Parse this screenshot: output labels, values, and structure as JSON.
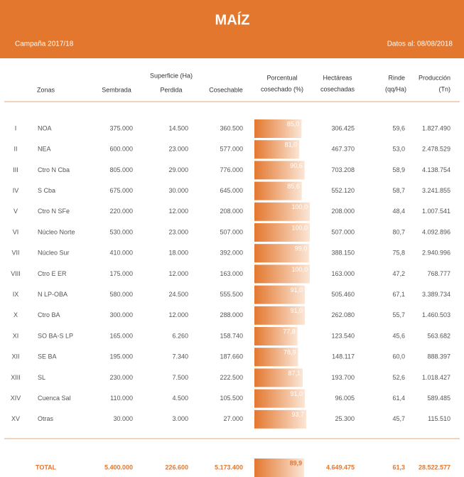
{
  "header": {
    "title": "MAÍZ",
    "campaign": "Campaña 2017/18",
    "date": "Datos al: 08/08/2018"
  },
  "columns": {
    "zonas": "Zonas",
    "sembrada": "Sembrada",
    "superficie": "Superficie (Ha)",
    "perdida": "Perdida",
    "cosechable": "Cosechable",
    "porcentual": [
      "Porcentual",
      "cosechado (%)"
    ],
    "hectareas": [
      "Hectáreas",
      "cosechadas"
    ],
    "rinde": [
      "Rinde",
      "(qq/Ha)"
    ],
    "produccion": [
      "Producción",
      "(Tn)"
    ]
  },
  "rows": [
    {
      "id": "I",
      "zona": "NOA",
      "sembrada": "375.000",
      "perdida": "14.500",
      "cosechable": "360.500",
      "pct": {
        "value": 85.0,
        "label": "85,0"
      },
      "hectareas": "306.425",
      "rinde": "59,6",
      "produccion": "1.827.490"
    },
    {
      "id": "II",
      "zona": "NEA",
      "sembrada": "600.000",
      "perdida": "23.000",
      "cosechable": "577.000",
      "pct": {
        "value": 81.0,
        "label": "81,0"
      },
      "hectareas": "467.370",
      "rinde": "53,0",
      "produccion": "2.478.529"
    },
    {
      "id": "III",
      "zona": "Ctro N Cba",
      "sembrada": "805.000",
      "perdida": "29.000",
      "cosechable": "776.000",
      "pct": {
        "value": 90.6,
        "label": "90,6"
      },
      "hectareas": "703.208",
      "rinde": "58,9",
      "produccion": "4.138.754"
    },
    {
      "id": "IV",
      "zona": "S Cba",
      "sembrada": "675.000",
      "perdida": "30.000",
      "cosechable": "645.000",
      "pct": {
        "value": 85.6,
        "label": "85,6"
      },
      "hectareas": "552.120",
      "rinde": "58,7",
      "produccion": "3.241.855"
    },
    {
      "id": "V",
      "zona": "Ctro N SFe",
      "sembrada": "220.000",
      "perdida": "12.000",
      "cosechable": "208.000",
      "pct": {
        "value": 100.0,
        "label": "100,0"
      },
      "hectareas": "208.000",
      "rinde": "48,4",
      "produccion": "1.007.541"
    },
    {
      "id": "VI",
      "zona": "Núcleo Norte",
      "sembrada": "530.000",
      "perdida": "23.000",
      "cosechable": "507.000",
      "pct": {
        "value": 100.0,
        "label": "100,0"
      },
      "hectareas": "507.000",
      "rinde": "80,7",
      "produccion": "4.092.896"
    },
    {
      "id": "VII",
      "zona": "Núcleo Sur",
      "sembrada": "410.000",
      "perdida": "18.000",
      "cosechable": "392.000",
      "pct": {
        "value": 99.0,
        "label": "99,0"
      },
      "hectareas": "388.150",
      "rinde": "75,8",
      "produccion": "2.940.996"
    },
    {
      "id": "VIII",
      "zona": "Ctro E ER",
      "sembrada": "175.000",
      "perdida": "12.000",
      "cosechable": "163.000",
      "pct": {
        "value": 100.0,
        "label": "100,0"
      },
      "hectareas": "163.000",
      "rinde": "47,2",
      "produccion": "768.777"
    },
    {
      "id": "IX",
      "zona": "N LP-OBA",
      "sembrada": "580.000",
      "perdida": "24.500",
      "cosechable": "555.500",
      "pct": {
        "value": 91.0,
        "label": "91,0"
      },
      "hectareas": "505.460",
      "rinde": "67,1",
      "produccion": "3.389.734"
    },
    {
      "id": "X",
      "zona": "Ctro BA",
      "sembrada": "300.000",
      "perdida": "12.000",
      "cosechable": "288.000",
      "pct": {
        "value": 91.0,
        "label": "91,0"
      },
      "hectareas": "262.080",
      "rinde": "55,7",
      "produccion": "1.460.503"
    },
    {
      "id": "XI",
      "zona": "SO BA-S LP",
      "sembrada": "165.000",
      "perdida": "6.260",
      "cosechable": "158.740",
      "pct": {
        "value": 77.8,
        "label": "77,8"
      },
      "hectareas": "123.540",
      "rinde": "45,6",
      "produccion": "563.682"
    },
    {
      "id": "XII",
      "zona": "SE BA",
      "sembrada": "195.000",
      "perdida": "7.340",
      "cosechable": "187.660",
      "pct": {
        "value": 78.9,
        "label": "78,9"
      },
      "hectareas": "148.117",
      "rinde": "60,0",
      "produccion": "888.397"
    },
    {
      "id": "XIII",
      "zona": "SL",
      "sembrada": "230.000",
      "perdida": "7.500",
      "cosechable": "222.500",
      "pct": {
        "value": 87.1,
        "label": "87,1"
      },
      "hectareas": "193.700",
      "rinde": "52,6",
      "produccion": "1.018.427"
    },
    {
      "id": "XIV",
      "zona": "Cuenca Sal",
      "sembrada": "110.000",
      "perdida": "4.500",
      "cosechable": "105.500",
      "pct": {
        "value": 91.0,
        "label": "91,0"
      },
      "hectareas": "96.005",
      "rinde": "61,4",
      "produccion": "589.485"
    },
    {
      "id": "XV",
      "zona": "Otras",
      "sembrada": "30.000",
      "perdida": "3.000",
      "cosechable": "27.000",
      "pct": {
        "value": 93.7,
        "label": "93,7"
      },
      "hectareas": "25.300",
      "rinde": "45,7",
      "produccion": "115.510"
    }
  ],
  "total": {
    "zona": "TOTAL",
    "sembrada": "5.400.000",
    "perdida": "226.600",
    "cosechable": "5.173.400",
    "pct": {
      "value": 89.9,
      "label": "89,9"
    },
    "hectareas": "4.649.475",
    "rinde": "61,3",
    "produccion": "28.522.577"
  }
}
